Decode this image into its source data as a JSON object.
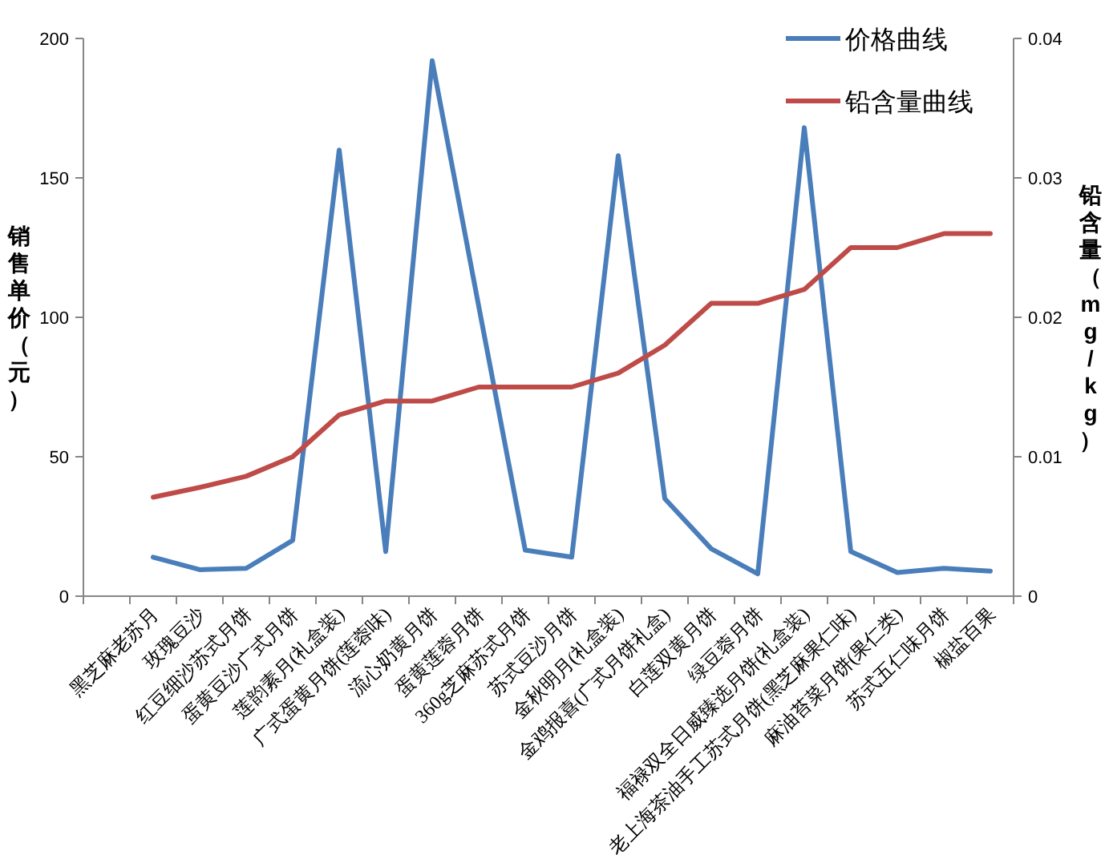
{
  "chart_data": {
    "type": "line",
    "categories": [
      null,
      "黑芝麻老苏月",
      "玫瑰豆沙",
      "红豆细沙苏式月饼",
      "蛋黄豆沙广式月饼",
      "莲韵素月(礼盒装)",
      "广式蛋黄月饼(莲蓉味)",
      "流心奶黄月饼",
      "蛋黄莲蓉月饼",
      "360g芝麻苏式月饼",
      "苏式豆沙月饼",
      "金秋明月(礼盒装)",
      "金鸡报喜(广式月饼礼盒)",
      "白莲双黄月饼",
      "绿豆蓉月饼",
      "福禄双全日威臻选月饼(礼盒装)",
      "老上海茶油手工苏式月饼(黑芝麻果仁味)",
      "麻油苔菜月饼(果仁类)",
      "苏式五仁味月饼",
      "椒盐百果"
    ],
    "series": [
      {
        "name": "价格曲线",
        "color": "#4a7ebb",
        "values": [
          null,
          14,
          9.5,
          10,
          20,
          160,
          16,
          192,
          104,
          16.5,
          14,
          158,
          35,
          17,
          8,
          168,
          16,
          8.5,
          10,
          9
        ]
      },
      {
        "name": "铅含量曲线",
        "color": "#be4b48",
        "axis": "y2",
        "values": [
          null,
          0.0071,
          0.0078,
          0.0086,
          0.01,
          0.013,
          0.014,
          0.014,
          0.015,
          0.015,
          0.015,
          0.016,
          0.018,
          0.021,
          0.021,
          0.022,
          0.025,
          0.025,
          0.026,
          0.026
        ]
      }
    ],
    "ylabel": "销售单价（元）",
    "y2label": "铅含量（mg/kg）",
    "ylim": [
      0,
      200
    ],
    "yticks": [
      0,
      50,
      100,
      150,
      200
    ],
    "y2lim": [
      0,
      0.04
    ],
    "y2ticks": [
      0,
      0.01,
      0.02,
      0.03,
      0.04
    ],
    "legend": "top right",
    "grid": false,
    "marker": "none",
    "line_style": "solid"
  }
}
